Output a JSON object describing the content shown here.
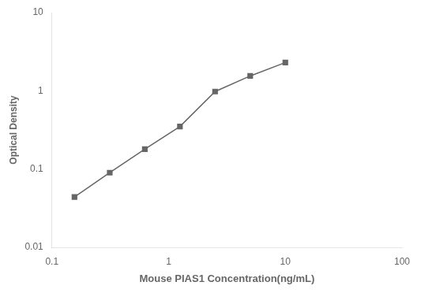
{
  "chart_data": {
    "type": "line",
    "x": [
      0.156,
      0.313,
      0.625,
      1.25,
      2.5,
      5.0,
      10.0
    ],
    "values": [
      0.044,
      0.09,
      0.18,
      0.35,
      0.98,
      1.55,
      2.3
    ],
    "xlabel": "Mouse PIAS1 Concentration(ng/mL)",
    "ylabel": "Optical Density",
    "xlim": [
      0.1,
      100
    ],
    "ylim": [
      0.01,
      10
    ],
    "xticks": [
      0.1,
      1,
      10,
      100
    ],
    "yticks": [
      0.01,
      0.1,
      1,
      10
    ],
    "log": true,
    "grid": false,
    "color": "#666666",
    "marker": "square"
  }
}
